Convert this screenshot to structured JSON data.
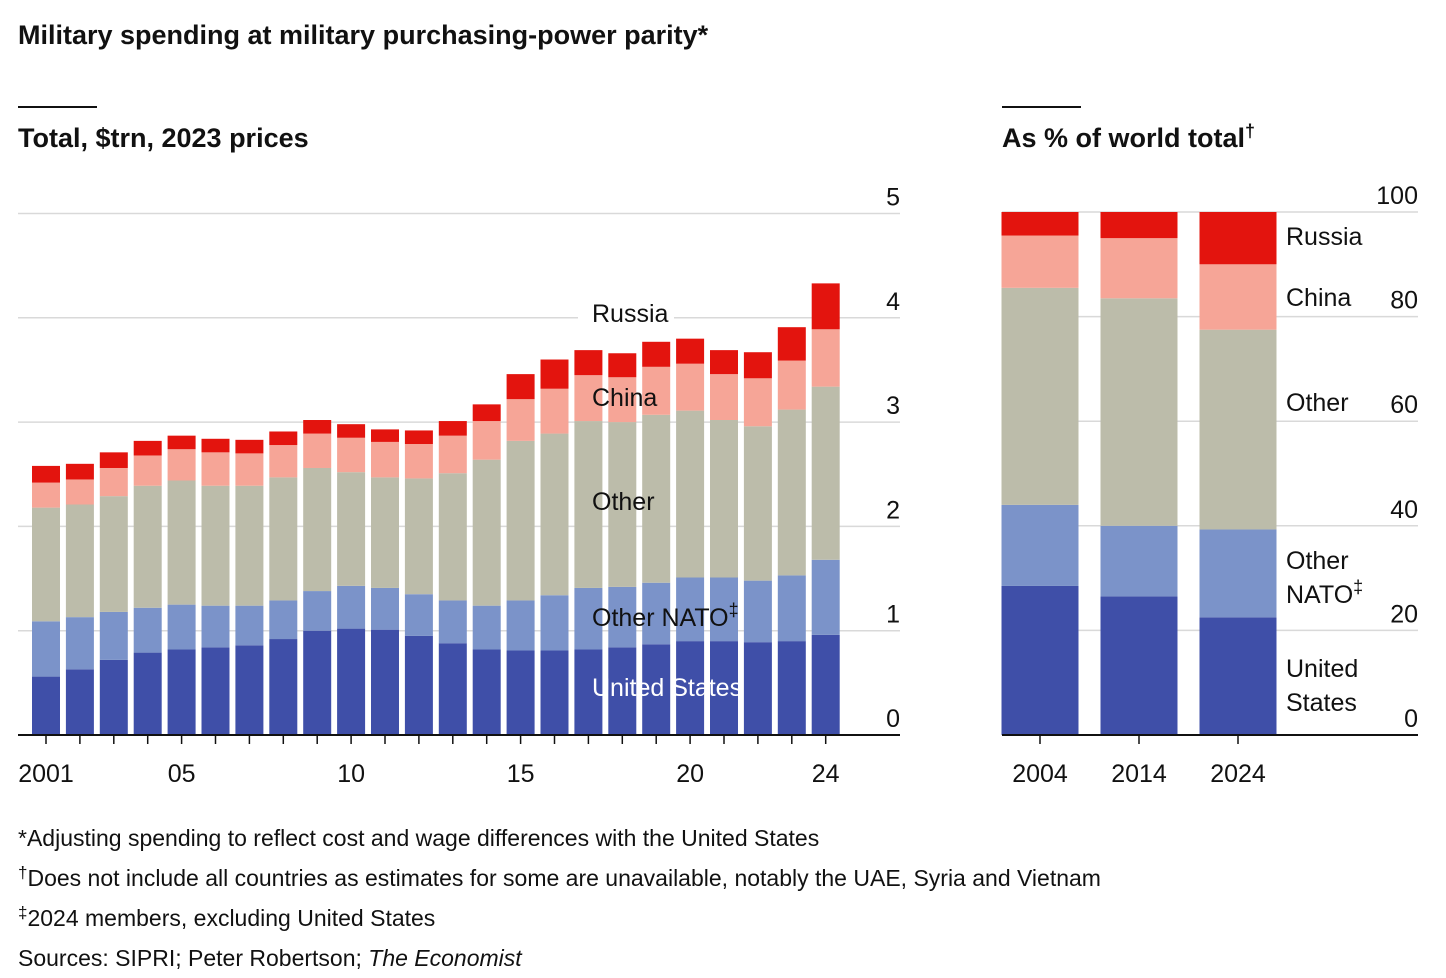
{
  "title": "Military spending at military purchasing-power parity*",
  "colors": {
    "united_states": "#3f4fa8",
    "other_nato": "#7b93c9",
    "other": "#bcbcaa",
    "china": "#f6a597",
    "russia": "#e3140e",
    "gridline": "#d9d9d9",
    "axis": "#111111"
  },
  "chart_data": [
    {
      "type": "bar",
      "stacked": true,
      "subtitle": "Total, $trn, 2023 prices",
      "ylim": [
        0,
        5
      ],
      "yticks": [
        0,
        1,
        2,
        3,
        4,
        5
      ],
      "grid": true,
      "x": [
        2001,
        2002,
        2003,
        2004,
        2005,
        2006,
        2007,
        2008,
        2009,
        2010,
        2011,
        2012,
        2013,
        2014,
        2015,
        2016,
        2017,
        2018,
        2019,
        2020,
        2021,
        2022,
        2023,
        2024
      ],
      "xtick_labels": [
        {
          "year": 2001,
          "label": "2001"
        },
        {
          "year": 2005,
          "label": "05"
        },
        {
          "year": 2010,
          "label": "10"
        },
        {
          "year": 2015,
          "label": "15"
        },
        {
          "year": 2020,
          "label": "20"
        },
        {
          "year": 2024,
          "label": "24"
        }
      ],
      "series": [
        {
          "key": "united_states",
          "name": "United States",
          "values": [
            0.56,
            0.63,
            0.72,
            0.79,
            0.82,
            0.84,
            0.86,
            0.92,
            1.0,
            1.02,
            1.01,
            0.95,
            0.88,
            0.82,
            0.81,
            0.81,
            0.82,
            0.84,
            0.87,
            0.9,
            0.9,
            0.89,
            0.9,
            0.96
          ]
        },
        {
          "key": "other_nato",
          "name": "Other NATO",
          "values": [
            0.53,
            0.5,
            0.46,
            0.43,
            0.43,
            0.4,
            0.38,
            0.37,
            0.38,
            0.41,
            0.4,
            0.4,
            0.41,
            0.42,
            0.48,
            0.53,
            0.59,
            0.58,
            0.59,
            0.61,
            0.61,
            0.59,
            0.63,
            0.72
          ]
        },
        {
          "key": "other",
          "name": "Other",
          "values": [
            1.09,
            1.08,
            1.11,
            1.17,
            1.19,
            1.15,
            1.15,
            1.18,
            1.18,
            1.09,
            1.06,
            1.11,
            1.22,
            1.4,
            1.53,
            1.55,
            1.6,
            1.58,
            1.61,
            1.6,
            1.51,
            1.48,
            1.59,
            1.66
          ]
        },
        {
          "key": "china",
          "name": "China",
          "values": [
            0.24,
            0.24,
            0.27,
            0.29,
            0.3,
            0.32,
            0.31,
            0.31,
            0.33,
            0.33,
            0.34,
            0.33,
            0.36,
            0.37,
            0.4,
            0.43,
            0.44,
            0.43,
            0.46,
            0.45,
            0.44,
            0.46,
            0.47,
            0.55
          ]
        },
        {
          "key": "russia",
          "name": "Russia",
          "values": [
            0.16,
            0.15,
            0.15,
            0.14,
            0.13,
            0.13,
            0.13,
            0.13,
            0.13,
            0.13,
            0.12,
            0.13,
            0.14,
            0.16,
            0.24,
            0.28,
            0.24,
            0.23,
            0.24,
            0.24,
            0.23,
            0.25,
            0.32,
            0.44
          ]
        }
      ],
      "series_labels": {
        "russia": "Russia",
        "china": "China",
        "other": "Other",
        "other_nato": "Other NATO",
        "other_nato_mark": "‡",
        "united_states": "United States"
      }
    },
    {
      "type": "bar",
      "stacked": true,
      "subtitle": "As % of world total",
      "subtitle_mark": "†",
      "ylim": [
        0,
        100
      ],
      "yticks": [
        0,
        20,
        40,
        60,
        80,
        100
      ],
      "grid": true,
      "categories": [
        "2004",
        "2014",
        "2024"
      ],
      "series": [
        {
          "key": "united_states",
          "name": "United States",
          "values": [
            28.5,
            26.5,
            22.5
          ]
        },
        {
          "key": "other_nato",
          "name": "Other NATO",
          "values": [
            15.5,
            13.5,
            16.8
          ]
        },
        {
          "key": "other",
          "name": "Other",
          "values": [
            41.5,
            43.5,
            38.2
          ]
        },
        {
          "key": "china",
          "name": "China",
          "values": [
            10.0,
            11.5,
            12.5
          ]
        },
        {
          "key": "russia",
          "name": "Russia",
          "values": [
            4.5,
            5.0,
            10.0
          ]
        }
      ],
      "series_labels": {
        "russia": "Russia",
        "china": "China",
        "other": "Other",
        "other_nato_1": "Other",
        "other_nato_2": "NATO",
        "other_nato_mark": "‡",
        "united_states_1": "United",
        "united_states_2": "States"
      }
    }
  ],
  "footnotes": {
    "note1": "*Adjusting spending to reflect cost and wage differences with the United States",
    "note2_mark": "†",
    "note2": "Does not include all countries as estimates for some are unavailable, notably the UAE, Syria and Vietnam",
    "note3_mark": "‡",
    "note3": "2024 members, excluding United States",
    "sources_prefix": "Sources: SIPRI; Peter Robertson; ",
    "sources_italic": "The Economist"
  }
}
